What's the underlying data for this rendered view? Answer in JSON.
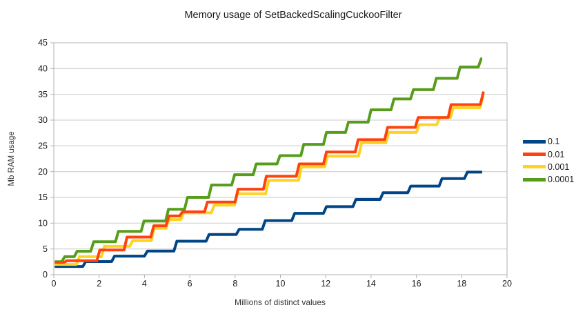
{
  "title": "Memory usage of SetBackedScalingCuckooFilter",
  "x_axis": {
    "label": "Millions of distinct values",
    "min": 0,
    "max": 20,
    "ticks": [
      0,
      2,
      4,
      6,
      8,
      10,
      12,
      14,
      16,
      18,
      20
    ]
  },
  "y_axis": {
    "label": "Mb RAM usage",
    "min": 0,
    "max": 45,
    "ticks": [
      0,
      5,
      10,
      15,
      20,
      25,
      30,
      35,
      40,
      45
    ]
  },
  "colors": {
    "frame": "#b2b2b2",
    "gridline": "#c9c9c9",
    "tick_text": "#1a1a1a"
  },
  "chart_data": {
    "type": "line",
    "subtype": "step",
    "title": "Memory usage of SetBackedScalingCuckooFilter",
    "xlabel": "Millions of distinct values",
    "ylabel": "Mb RAM usage",
    "xlim": [
      0,
      20
    ],
    "ylim": [
      0,
      45
    ],
    "grid": "horizontal",
    "legend_position": "right",
    "x_end": 18.9,
    "draw_order": [
      0,
      2,
      3,
      1
    ],
    "series": [
      {
        "name": "0.1",
        "color": "#004586",
        "steps": [
          [
            0,
            1.6
          ],
          [
            1.28,
            2.55
          ],
          [
            2.55,
            3.6
          ],
          [
            4.0,
            4.6
          ],
          [
            5.3,
            6.5
          ],
          [
            6.72,
            7.8
          ],
          [
            8.05,
            8.8
          ],
          [
            9.2,
            10.5
          ],
          [
            10.5,
            11.9
          ],
          [
            11.9,
            13.2
          ],
          [
            13.2,
            14.6
          ],
          [
            14.4,
            15.9
          ],
          [
            15.62,
            17.2
          ],
          [
            17.0,
            18.65
          ],
          [
            18.12,
            19.9
          ]
        ]
      },
      {
        "name": "0.01",
        "color": "#ff420e",
        "steps": [
          [
            0,
            2.4
          ],
          [
            0.45,
            2.7
          ],
          [
            1.9,
            4.8
          ],
          [
            3.1,
            7.3
          ],
          [
            4.28,
            9.5
          ],
          [
            4.95,
            11.4
          ],
          [
            5.55,
            12.2
          ],
          [
            6.65,
            14.1
          ],
          [
            8.0,
            16.6
          ],
          [
            9.25,
            19.1
          ],
          [
            10.7,
            21.5
          ],
          [
            11.9,
            23.8
          ],
          [
            13.3,
            26.2
          ],
          [
            14.6,
            28.6
          ],
          [
            15.95,
            30.5
          ],
          [
            17.4,
            33.0
          ],
          [
            18.82,
            35.3
          ]
        ]
      },
      {
        "name": "0.001",
        "color": "#ffd320",
        "steps": [
          [
            0,
            2.0
          ],
          [
            1.0,
            3.5
          ],
          [
            2.1,
            5.5
          ],
          [
            3.35,
            6.6
          ],
          [
            4.3,
            9.0
          ],
          [
            4.95,
            10.7
          ],
          [
            5.6,
            12.0
          ],
          [
            6.95,
            13.5
          ],
          [
            7.97,
            15.7
          ],
          [
            9.35,
            18.3
          ],
          [
            10.8,
            20.9
          ],
          [
            11.95,
            23.0
          ],
          [
            13.45,
            25.6
          ],
          [
            14.65,
            27.6
          ],
          [
            16.0,
            29.1
          ],
          [
            16.9,
            30.5
          ],
          [
            17.5,
            32.4
          ],
          [
            18.8,
            34.5
          ]
        ]
      },
      {
        "name": "0.0001",
        "color": "#579d1c",
        "steps": [
          [
            0,
            2.5
          ],
          [
            0.35,
            3.5
          ],
          [
            0.9,
            4.55
          ],
          [
            1.63,
            6.4
          ],
          [
            2.72,
            8.4
          ],
          [
            3.85,
            10.4
          ],
          [
            4.93,
            12.7
          ],
          [
            5.77,
            15.0
          ],
          [
            6.83,
            17.4
          ],
          [
            7.85,
            19.4
          ],
          [
            8.8,
            21.5
          ],
          [
            9.85,
            23.1
          ],
          [
            10.9,
            25.3
          ],
          [
            11.9,
            27.6
          ],
          [
            12.87,
            29.6
          ],
          [
            13.87,
            32.0
          ],
          [
            14.88,
            34.1
          ],
          [
            15.74,
            35.9
          ],
          [
            16.75,
            38.1
          ],
          [
            17.8,
            40.3
          ],
          [
            18.73,
            41.9
          ]
        ]
      }
    ]
  }
}
